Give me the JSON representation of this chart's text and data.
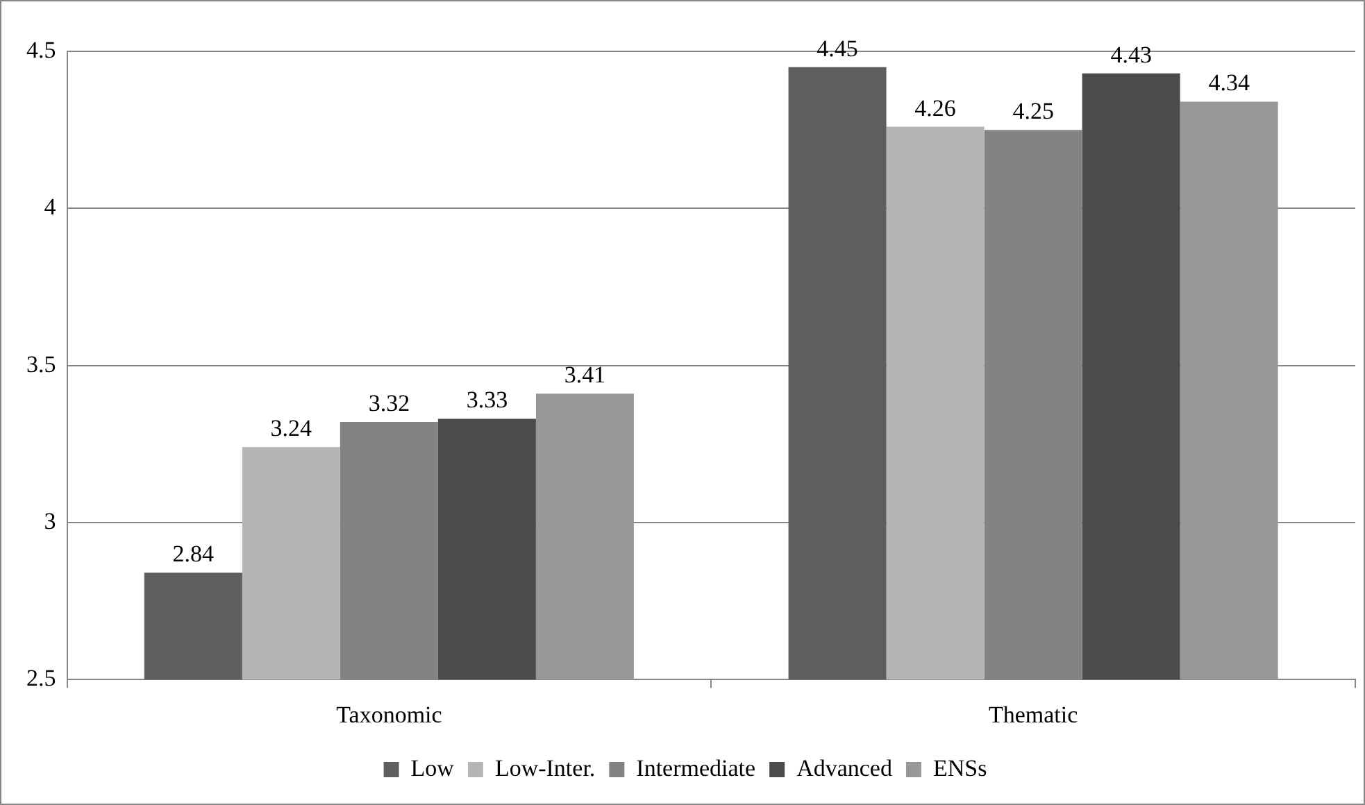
{
  "chart_data": {
    "type": "bar",
    "categories": [
      "Taxonomic",
      "Thematic"
    ],
    "series": [
      {
        "name": "Low",
        "color": "#5e5e5e",
        "values": [
          2.84,
          4.45
        ]
      },
      {
        "name": "Low-Inter.",
        "color": "#b5b5b5",
        "values": [
          3.24,
          4.26
        ]
      },
      {
        "name": "Intermediate",
        "color": "#838383",
        "values": [
          3.32,
          4.25
        ]
      },
      {
        "name": "Advanced",
        "color": "#4b4b4b",
        "values": [
          3.33,
          4.43
        ]
      },
      {
        "name": "ENSs",
        "color": "#989898",
        "values": [
          3.41,
          4.34
        ]
      }
    ],
    "ylim": [
      2.5,
      4.5
    ],
    "yticks": [
      2.5,
      3,
      3.5,
      4,
      4.5
    ],
    "grid": "y",
    "legend": "bottom",
    "data_labels": true
  }
}
